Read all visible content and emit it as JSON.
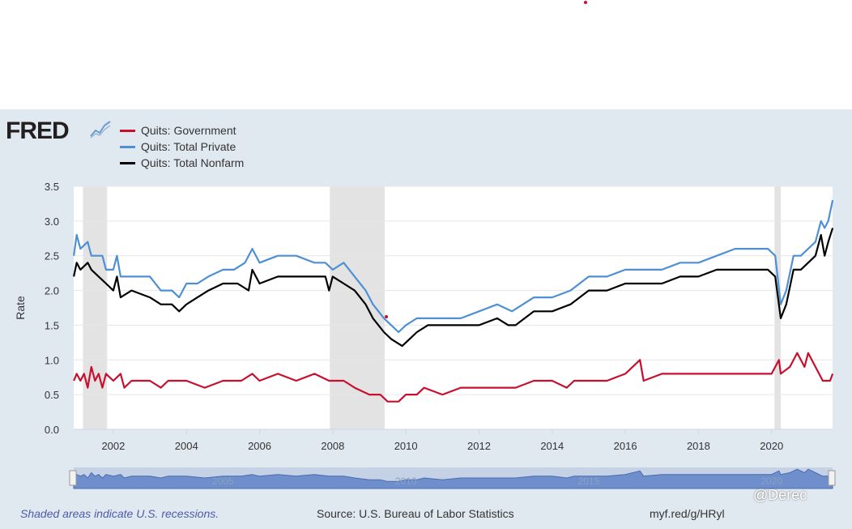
{
  "logo": {
    "text": "FRED"
  },
  "source": "Source: U.S. Bureau of Labor Statistics",
  "recession_note": "Shaded areas indicate U.S. recessions.",
  "short_url": "myf.red/g/HRyl",
  "watermark": "@Derec",
  "colors": {
    "government": "#c8102e",
    "private": "#4f8fd3",
    "nonfarm": "#000000",
    "recession": "#e3e3e3",
    "panel": "#e1e9f0"
  },
  "navigator_labels": [
    "2005",
    "2010",
    "2015",
    "2020"
  ],
  "chart_data": {
    "type": "line",
    "title": "",
    "xlabel": "",
    "ylabel": "Rate",
    "xlim": [
      2000.917,
      2021.667
    ],
    "ylim": [
      0,
      3.5
    ],
    "y_ticks": [
      "0.0",
      "0.5",
      "1.0",
      "1.5",
      "2.0",
      "2.5",
      "3.0",
      "3.5"
    ],
    "x_ticks": [
      "2002",
      "2004",
      "2006",
      "2008",
      "2010",
      "2012",
      "2014",
      "2016",
      "2018",
      "2020"
    ],
    "grid": true,
    "legend": "top-left",
    "recessions": [
      [
        2001.17,
        2001.83
      ],
      [
        2007.92,
        2009.42
      ],
      [
        2020.08,
        2020.25
      ]
    ],
    "series": [
      {
        "name": "Quits: Government",
        "color": "#c8102e",
        "points": [
          [
            2000.92,
            0.7
          ],
          [
            2001.0,
            0.8
          ],
          [
            2001.1,
            0.7
          ],
          [
            2001.2,
            0.8
          ],
          [
            2001.3,
            0.6
          ],
          [
            2001.4,
            0.9
          ],
          [
            2001.5,
            0.7
          ],
          [
            2001.6,
            0.8
          ],
          [
            2001.7,
            0.6
          ],
          [
            2001.8,
            0.8
          ],
          [
            2002.0,
            0.7
          ],
          [
            2002.2,
            0.8
          ],
          [
            2002.3,
            0.6
          ],
          [
            2002.5,
            0.7
          ],
          [
            2003.0,
            0.7
          ],
          [
            2003.3,
            0.6
          ],
          [
            2003.5,
            0.7
          ],
          [
            2004.0,
            0.7
          ],
          [
            2004.5,
            0.6
          ],
          [
            2005.0,
            0.7
          ],
          [
            2005.5,
            0.7
          ],
          [
            2005.8,
            0.8
          ],
          [
            2006.0,
            0.7
          ],
          [
            2006.5,
            0.8
          ],
          [
            2007.0,
            0.7
          ],
          [
            2007.5,
            0.8
          ],
          [
            2007.9,
            0.7
          ],
          [
            2008.3,
            0.7
          ],
          [
            2008.6,
            0.6
          ],
          [
            2009.0,
            0.5
          ],
          [
            2009.3,
            0.5
          ],
          [
            2009.5,
            0.4
          ],
          [
            2009.8,
            0.4
          ],
          [
            2010.0,
            0.5
          ],
          [
            2010.3,
            0.5
          ],
          [
            2010.5,
            0.6
          ],
          [
            2011.0,
            0.5
          ],
          [
            2011.5,
            0.6
          ],
          [
            2012.0,
            0.6
          ],
          [
            2012.5,
            0.6
          ],
          [
            2013.0,
            0.6
          ],
          [
            2013.5,
            0.7
          ],
          [
            2014.0,
            0.7
          ],
          [
            2014.4,
            0.6
          ],
          [
            2014.6,
            0.7
          ],
          [
            2015.0,
            0.7
          ],
          [
            2015.5,
            0.7
          ],
          [
            2016.0,
            0.8
          ],
          [
            2016.4,
            1.0
          ],
          [
            2016.5,
            0.7
          ],
          [
            2017.0,
            0.8
          ],
          [
            2017.5,
            0.8
          ],
          [
            2018.0,
            0.8
          ],
          [
            2018.5,
            0.8
          ],
          [
            2019.0,
            0.8
          ],
          [
            2019.5,
            0.8
          ],
          [
            2020.0,
            0.8
          ],
          [
            2020.2,
            1.0
          ],
          [
            2020.25,
            0.8
          ],
          [
            2020.5,
            0.9
          ],
          [
            2020.7,
            1.1
          ],
          [
            2020.9,
            0.9
          ],
          [
            2021.0,
            1.1
          ],
          [
            2021.2,
            0.9
          ],
          [
            2021.4,
            0.7
          ],
          [
            2021.6,
            0.7
          ],
          [
            2021.67,
            0.8
          ]
        ]
      },
      {
        "name": "Quits: Total Private",
        "color": "#4f8fd3",
        "points": [
          [
            2000.92,
            2.5
          ],
          [
            2001.0,
            2.8
          ],
          [
            2001.1,
            2.6
          ],
          [
            2001.3,
            2.7
          ],
          [
            2001.4,
            2.5
          ],
          [
            2001.7,
            2.5
          ],
          [
            2001.8,
            2.3
          ],
          [
            2002.0,
            2.3
          ],
          [
            2002.1,
            2.5
          ],
          [
            2002.2,
            2.2
          ],
          [
            2002.4,
            2.2
          ],
          [
            2003.0,
            2.2
          ],
          [
            2003.3,
            2.0
          ],
          [
            2003.6,
            2.0
          ],
          [
            2003.8,
            1.9
          ],
          [
            2004.0,
            2.1
          ],
          [
            2004.3,
            2.1
          ],
          [
            2004.6,
            2.2
          ],
          [
            2005.0,
            2.3
          ],
          [
            2005.3,
            2.3
          ],
          [
            2005.6,
            2.4
          ],
          [
            2005.8,
            2.6
          ],
          [
            2006.0,
            2.4
          ],
          [
            2006.5,
            2.5
          ],
          [
            2007.0,
            2.5
          ],
          [
            2007.5,
            2.4
          ],
          [
            2007.8,
            2.4
          ],
          [
            2008.0,
            2.3
          ],
          [
            2008.3,
            2.4
          ],
          [
            2008.6,
            2.2
          ],
          [
            2008.9,
            2.0
          ],
          [
            2009.1,
            1.8
          ],
          [
            2009.4,
            1.6
          ],
          [
            2009.6,
            1.5
          ],
          [
            2009.8,
            1.4
          ],
          [
            2010.0,
            1.5
          ],
          [
            2010.3,
            1.6
          ],
          [
            2010.6,
            1.6
          ],
          [
            2011.0,
            1.6
          ],
          [
            2011.5,
            1.6
          ],
          [
            2012.0,
            1.7
          ],
          [
            2012.5,
            1.8
          ],
          [
            2012.9,
            1.7
          ],
          [
            2013.2,
            1.8
          ],
          [
            2013.5,
            1.9
          ],
          [
            2014.0,
            1.9
          ],
          [
            2014.5,
            2.0
          ],
          [
            2015.0,
            2.2
          ],
          [
            2015.5,
            2.2
          ],
          [
            2016.0,
            2.3
          ],
          [
            2016.5,
            2.3
          ],
          [
            2017.0,
            2.3
          ],
          [
            2017.5,
            2.4
          ],
          [
            2018.0,
            2.4
          ],
          [
            2018.5,
            2.5
          ],
          [
            2019.0,
            2.6
          ],
          [
            2019.5,
            2.6
          ],
          [
            2019.9,
            2.6
          ],
          [
            2020.1,
            2.5
          ],
          [
            2020.25,
            1.8
          ],
          [
            2020.4,
            2.0
          ],
          [
            2020.6,
            2.5
          ],
          [
            2020.8,
            2.5
          ],
          [
            2021.0,
            2.6
          ],
          [
            2021.2,
            2.7
          ],
          [
            2021.35,
            3.0
          ],
          [
            2021.45,
            2.9
          ],
          [
            2021.55,
            3.0
          ],
          [
            2021.67,
            3.3
          ]
        ]
      },
      {
        "name": "Quits: Total Nonfarm",
        "color": "#000000",
        "points": [
          [
            2000.92,
            2.2
          ],
          [
            2001.0,
            2.4
          ],
          [
            2001.1,
            2.3
          ],
          [
            2001.3,
            2.4
          ],
          [
            2001.4,
            2.3
          ],
          [
            2001.6,
            2.2
          ],
          [
            2001.8,
            2.1
          ],
          [
            2002.0,
            2.0
          ],
          [
            2002.1,
            2.2
          ],
          [
            2002.2,
            1.9
          ],
          [
            2002.5,
            2.0
          ],
          [
            2003.0,
            1.9
          ],
          [
            2003.3,
            1.8
          ],
          [
            2003.6,
            1.8
          ],
          [
            2003.8,
            1.7
          ],
          [
            2004.0,
            1.8
          ],
          [
            2004.3,
            1.9
          ],
          [
            2004.6,
            2.0
          ],
          [
            2005.0,
            2.1
          ],
          [
            2005.4,
            2.1
          ],
          [
            2005.7,
            2.0
          ],
          [
            2005.8,
            2.3
          ],
          [
            2006.0,
            2.1
          ],
          [
            2006.5,
            2.2
          ],
          [
            2007.0,
            2.2
          ],
          [
            2007.5,
            2.2
          ],
          [
            2007.8,
            2.2
          ],
          [
            2007.9,
            2.0
          ],
          [
            2008.0,
            2.2
          ],
          [
            2008.3,
            2.1
          ],
          [
            2008.6,
            2.0
          ],
          [
            2008.9,
            1.8
          ],
          [
            2009.1,
            1.6
          ],
          [
            2009.4,
            1.4
          ],
          [
            2009.6,
            1.3
          ],
          [
            2009.9,
            1.2
          ],
          [
            2010.1,
            1.3
          ],
          [
            2010.3,
            1.4
          ],
          [
            2010.6,
            1.5
          ],
          [
            2011.0,
            1.5
          ],
          [
            2011.5,
            1.5
          ],
          [
            2012.0,
            1.5
          ],
          [
            2012.5,
            1.6
          ],
          [
            2012.8,
            1.5
          ],
          [
            2013.0,
            1.5
          ],
          [
            2013.5,
            1.7
          ],
          [
            2014.0,
            1.7
          ],
          [
            2014.5,
            1.8
          ],
          [
            2015.0,
            2.0
          ],
          [
            2015.5,
            2.0
          ],
          [
            2016.0,
            2.1
          ],
          [
            2016.5,
            2.1
          ],
          [
            2017.0,
            2.1
          ],
          [
            2017.5,
            2.2
          ],
          [
            2018.0,
            2.2
          ],
          [
            2018.5,
            2.3
          ],
          [
            2019.0,
            2.3
          ],
          [
            2019.5,
            2.3
          ],
          [
            2019.9,
            2.3
          ],
          [
            2020.1,
            2.2
          ],
          [
            2020.25,
            1.6
          ],
          [
            2020.4,
            1.8
          ],
          [
            2020.6,
            2.3
          ],
          [
            2020.8,
            2.3
          ],
          [
            2021.0,
            2.4
          ],
          [
            2021.2,
            2.5
          ],
          [
            2021.35,
            2.8
          ],
          [
            2021.45,
            2.5
          ],
          [
            2021.55,
            2.7
          ],
          [
            2021.67,
            2.9
          ]
        ]
      }
    ]
  }
}
